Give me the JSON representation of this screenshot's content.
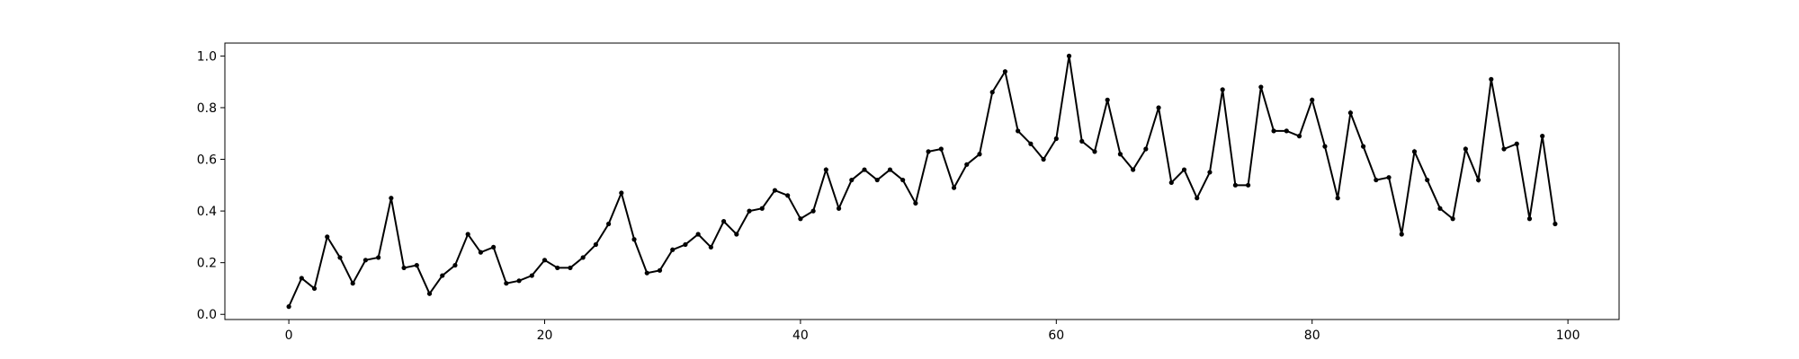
{
  "chart_data": {
    "type": "line",
    "title": "",
    "xlabel": "",
    "ylabel": "",
    "xlim": [
      -5,
      104
    ],
    "ylim": [
      -0.02,
      1.05
    ],
    "x_ticks": [
      0,
      20,
      40,
      60,
      80,
      100
    ],
    "y_ticks": [
      0.0,
      0.2,
      0.4,
      0.6,
      0.8,
      1.0
    ],
    "x_tick_labels": [
      "0",
      "20",
      "40",
      "60",
      "80",
      "100"
    ],
    "y_tick_labels": [
      "0.0",
      "0.2",
      "0.4",
      "0.6",
      "0.8",
      "1.0"
    ],
    "grid": false,
    "legend": "none",
    "line_color": "#000000",
    "marker": "point",
    "series": [
      {
        "x": [
          0,
          1,
          2,
          3,
          4,
          5,
          6,
          7,
          8,
          9,
          10,
          11,
          12,
          13,
          14,
          15,
          16,
          17,
          18,
          19,
          20,
          21,
          22,
          23,
          24,
          25,
          26,
          27,
          28,
          29,
          30,
          31,
          32,
          33,
          34,
          35,
          36,
          37,
          38,
          39,
          40,
          41,
          42,
          43,
          44,
          45,
          46,
          47,
          48,
          49,
          50,
          51,
          52,
          53,
          54,
          55,
          56,
          57,
          58,
          59,
          60,
          61,
          62,
          63,
          64,
          65,
          66,
          67,
          68,
          69,
          70,
          71,
          72,
          73,
          74,
          75,
          76,
          77,
          78,
          79,
          80,
          81,
          82,
          83,
          84,
          85,
          86,
          87,
          88,
          89,
          90,
          91,
          92,
          93,
          94,
          95,
          96,
          97,
          98,
          99
        ],
        "values": [
          0.03,
          0.14,
          0.1,
          0.3,
          0.22,
          0.12,
          0.21,
          0.22,
          0.45,
          0.18,
          0.19,
          0.08,
          0.15,
          0.19,
          0.31,
          0.24,
          0.26,
          0.12,
          0.13,
          0.15,
          0.21,
          0.18,
          0.18,
          0.22,
          0.27,
          0.35,
          0.47,
          0.29,
          0.16,
          0.17,
          0.25,
          0.27,
          0.31,
          0.26,
          0.36,
          0.31,
          0.4,
          0.41,
          0.48,
          0.46,
          0.37,
          0.4,
          0.56,
          0.41,
          0.52,
          0.56,
          0.52,
          0.56,
          0.52,
          0.43,
          0.63,
          0.64,
          0.49,
          0.58,
          0.62,
          0.86,
          0.94,
          0.71,
          0.66,
          0.6,
          0.68,
          1.0,
          0.67,
          0.63,
          0.83,
          0.62,
          0.56,
          0.64,
          0.8,
          0.51,
          0.56,
          0.45,
          0.55,
          0.87,
          0.5,
          0.5,
          0.88,
          0.71,
          0.71,
          0.69,
          0.83,
          0.65,
          0.45,
          0.78,
          0.65,
          0.52,
          0.53,
          0.31,
          0.63,
          0.52,
          0.41,
          0.37,
          0.64,
          0.52,
          0.91,
          0.64,
          0.66,
          0.37,
          0.69,
          0.35
        ]
      }
    ]
  }
}
